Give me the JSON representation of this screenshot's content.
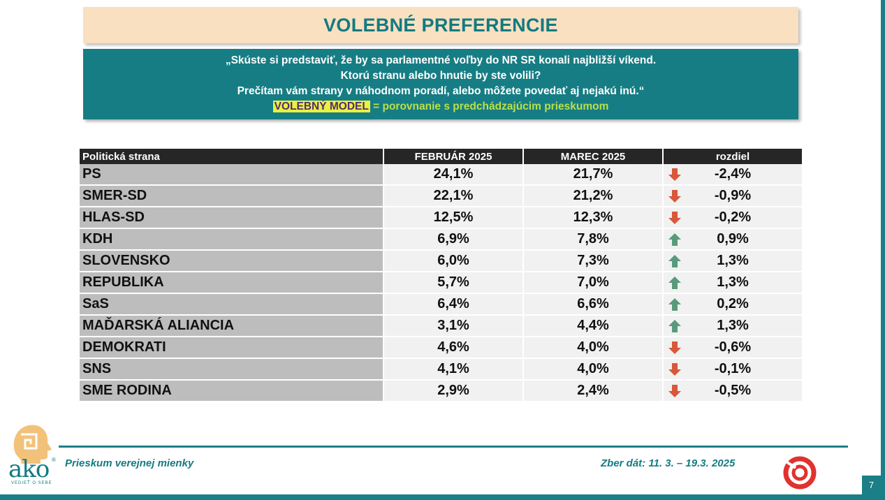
{
  "title": "VOLEBNÉ PREFERENCIE",
  "question": {
    "line1": "„Skúste si predstaviť, že by sa parlamentné voľby do NR SR konali najbližší víkend.",
    "line2": "Ktorú stranu alebo hnutie by ste volili?",
    "line3": "Prečítam vám strany v náhodnom poradí, alebo môžete povedať aj nejakú inú.“",
    "model_tag": "VOLEBNÝ MODEL",
    "model_note": " = porovnanie s predchádzajúcim prieskumom"
  },
  "table": {
    "headers": [
      "Politická strana",
      "FEBRUÁR 2025",
      "MAREC 2025",
      "rozdiel"
    ],
    "rows": [
      {
        "party": "PS",
        "feb": "24,1%",
        "mar": "21,7%",
        "diff": "-2,4%",
        "trend": "down"
      },
      {
        "party": "SMER-SD",
        "feb": "22,1%",
        "mar": "21,2%",
        "diff": "-0,9%",
        "trend": "down"
      },
      {
        "party": "HLAS-SD",
        "feb": "12,5%",
        "mar": "12,3%",
        "diff": "-0,2%",
        "trend": "down"
      },
      {
        "party": "KDH",
        "feb": "6,9%",
        "mar": "7,8%",
        "diff": "0,9%",
        "trend": "up"
      },
      {
        "party": "SLOVENSKO",
        "feb": "6,0%",
        "mar": "7,3%",
        "diff": "1,3%",
        "trend": "up"
      },
      {
        "party": "REPUBLIKA",
        "feb": "5,7%",
        "mar": "7,0%",
        "diff": "1,3%",
        "trend": "up"
      },
      {
        "party": "SaS",
        "feb": "6,4%",
        "mar": "6,6%",
        "diff": "0,2%",
        "trend": "up"
      },
      {
        "party": "MAĎARSKÁ ALIANCIA",
        "feb": "3,1%",
        "mar": "4,4%",
        "diff": "1,3%",
        "trend": "up"
      },
      {
        "party": "DEMOKRATI",
        "feb": "4,6%",
        "mar": "4,0%",
        "diff": "-0,6%",
        "trend": "down"
      },
      {
        "party": "SNS",
        "feb": "4,1%",
        "mar": "4,0%",
        "diff": "-0,1%",
        "trend": "down"
      },
      {
        "party": "SME RODINA",
        "feb": "2,9%",
        "mar": "2,4%",
        "diff": "-0,5%",
        "trend": "down"
      }
    ]
  },
  "footer": {
    "left": "Prieskum verejnej mienky",
    "right": "Zber dát: 11. 3. – 19.3. 2025",
    "page": "7"
  },
  "logo": {
    "word": "ako",
    "tagline": "VEDIEŤ O SEBE"
  },
  "colors": {
    "teal": "#167d84",
    "title_bg": "#f8e0c1",
    "arrow_up": "#5a9a7c",
    "arrow_down": "#d9573a"
  }
}
